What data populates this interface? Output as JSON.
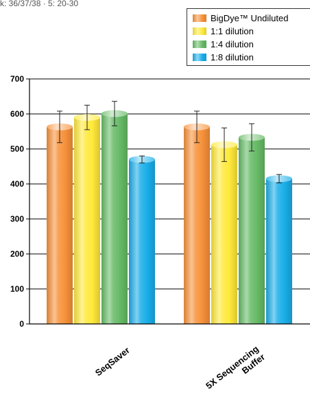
{
  "top_note": "k: 36/37/38 · 5: 20-30",
  "colors": {
    "bigdye_undiluted": "#f7923a",
    "dilution_1_1": "#ffe93a",
    "dilution_1_4": "#66bb66",
    "dilution_1_8": "#1aaee9"
  },
  "chart_data": {
    "type": "bar",
    "title": "",
    "xlabel": "",
    "ylabel": "",
    "ylim": [
      0,
      700
    ],
    "yticks": [
      0,
      100,
      200,
      300,
      400,
      500,
      600,
      700
    ],
    "grid": true,
    "legend_position": "top-right",
    "categories": [
      "SeqSaver",
      "5X Sequencing Buffer"
    ],
    "series": [
      {
        "name": "BigDye™ Undiluted",
        "color": "#f7923a",
        "values": [
          563,
          563
        ],
        "errors": [
          45,
          45
        ]
      },
      {
        "name": "1:1 dilution",
        "color": "#ffe93a",
        "values": [
          590,
          512
        ],
        "errors": [
          35,
          48
        ]
      },
      {
        "name": "1:4 dilution",
        "color": "#66bb66",
        "values": [
          601,
          533
        ],
        "errors": [
          35,
          39
        ]
      },
      {
        "name": "1:8 dilution",
        "color": "#1aaee9",
        "values": [
          470,
          415
        ],
        "errors": [
          10,
          12
        ]
      }
    ]
  }
}
